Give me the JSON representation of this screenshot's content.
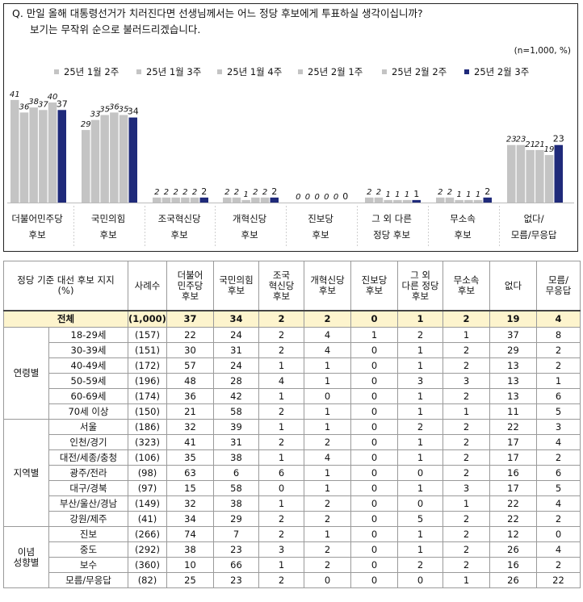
{
  "question": {
    "line1": "Q. 만일 올해 대통령선거가 치러진다면 선생님께서는 어느 정당 후보에게 투표하실 생각이십니까?",
    "line2": "보기는 무작위 순으로 불러드리겠습니다."
  },
  "note": "(n=1,000, %)",
  "colors": {
    "prior": "#c4c4c4",
    "latest": "#1f2a7a",
    "total_bg": "#fdf4cd"
  },
  "chart_data": {
    "type": "bar",
    "title": "",
    "legend_position": "top",
    "series": [
      {
        "name": "25년 1월 2주",
        "values": [
          41,
          29,
          2,
          2,
          0,
          2,
          2,
          23
        ]
      },
      {
        "name": "25년 1월 3주",
        "values": [
          36,
          33,
          2,
          2,
          0,
          2,
          2,
          23
        ]
      },
      {
        "name": "25년 1월 4주",
        "values": [
          38,
          35,
          2,
          1,
          0,
          1,
          1,
          21
        ]
      },
      {
        "name": "25년 2월 1주",
        "values": [
          37,
          36,
          2,
          2,
          0,
          1,
          1,
          21
        ]
      },
      {
        "name": "25년 2월 2주",
        "values": [
          40,
          35,
          2,
          2,
          0,
          1,
          1,
          19
        ]
      },
      {
        "name": "25년 2월 3주",
        "values": [
          37,
          34,
          2,
          2,
          0,
          1,
          2,
          23
        ]
      }
    ],
    "categories": [
      {
        "line1": "더불어민주당",
        "line2": "후보"
      },
      {
        "line1": "국민의힘",
        "line2": "후보"
      },
      {
        "line1": "조국혁신당",
        "line2": "후보"
      },
      {
        "line1": "개혁신당",
        "line2": "후보"
      },
      {
        "line1": "진보당",
        "line2": "후보"
      },
      {
        "line1": "그 외 다른",
        "line2": "정당 후보"
      },
      {
        "line1": "무소속",
        "line2": "후보"
      },
      {
        "line1": "없다/",
        "line2": "모름/무응답"
      }
    ],
    "ylim": [
      0,
      45
    ]
  },
  "table": {
    "headers": [
      [
        "정당 기준 대선 후보 지지",
        "(%)"
      ],
      [
        "사례수"
      ],
      [
        "더불어",
        "민주당",
        "후보"
      ],
      [
        "국민의힘",
        "후보"
      ],
      [
        "조국",
        "혁신당",
        "후보"
      ],
      [
        "개혁신당",
        "후보"
      ],
      [
        "진보당",
        "후보"
      ],
      [
        "그 외",
        "다른 정당",
        "후보"
      ],
      [
        "무소속",
        "후보"
      ],
      [
        "없다"
      ],
      [
        "모름/",
        "무응답"
      ]
    ],
    "total": {
      "label": "전체",
      "n": "(1,000)",
      "values": [
        "37",
        "34",
        "2",
        "2",
        "0",
        "1",
        "2",
        "19",
        "4"
      ]
    },
    "groups": [
      {
        "name": [
          "연령별"
        ],
        "rows": [
          {
            "label": "18-29세",
            "n": "(157)",
            "values": [
              "22",
              "24",
              "2",
              "4",
              "1",
              "2",
              "1",
              "37",
              "8"
            ]
          },
          {
            "label": "30-39세",
            "n": "(151)",
            "values": [
              "30",
              "31",
              "2",
              "4",
              "0",
              "1",
              "2",
              "29",
              "2"
            ]
          },
          {
            "label": "40-49세",
            "n": "(172)",
            "values": [
              "57",
              "24",
              "1",
              "1",
              "0",
              "1",
              "2",
              "13",
              "2"
            ]
          },
          {
            "label": "50-59세",
            "n": "(196)",
            "values": [
              "48",
              "28",
              "4",
              "1",
              "0",
              "3",
              "3",
              "13",
              "1"
            ]
          },
          {
            "label": "60-69세",
            "n": "(174)",
            "values": [
              "36",
              "42",
              "1",
              "0",
              "0",
              "1",
              "2",
              "13",
              "6"
            ]
          },
          {
            "label": "70세 이상",
            "n": "(150)",
            "values": [
              "21",
              "58",
              "2",
              "1",
              "0",
              "1",
              "1",
              "11",
              "5"
            ]
          }
        ]
      },
      {
        "name": [
          "지역별"
        ],
        "rows": [
          {
            "label": "서울",
            "n": "(186)",
            "values": [
              "32",
              "39",
              "1",
              "1",
              "0",
              "2",
              "2",
              "22",
              "3"
            ]
          },
          {
            "label": "인천/경기",
            "n": "(323)",
            "values": [
              "41",
              "31",
              "2",
              "2",
              "0",
              "1",
              "2",
              "17",
              "4"
            ]
          },
          {
            "label": "대전/세종/충청",
            "n": "(106)",
            "values": [
              "35",
              "38",
              "1",
              "4",
              "0",
              "1",
              "2",
              "17",
              "2"
            ]
          },
          {
            "label": "광주/전라",
            "n": "(98)",
            "values": [
              "63",
              "6",
              "6",
              "1",
              "0",
              "0",
              "2",
              "16",
              "6"
            ]
          },
          {
            "label": "대구/경북",
            "n": "(97)",
            "values": [
              "15",
              "58",
              "0",
              "1",
              "0",
              "1",
              "3",
              "17",
              "5"
            ]
          },
          {
            "label": "부산/울산/경남",
            "n": "(149)",
            "values": [
              "32",
              "38",
              "1",
              "2",
              "0",
              "0",
              "1",
              "22",
              "4"
            ]
          },
          {
            "label": "강원/제주",
            "n": "(41)",
            "values": [
              "34",
              "29",
              "2",
              "2",
              "0",
              "5",
              "2",
              "22",
              "2"
            ]
          }
        ]
      },
      {
        "name": [
          "이념",
          "성향별"
        ],
        "rows": [
          {
            "label": "진보",
            "n": "(266)",
            "values": [
              "74",
              "7",
              "2",
              "1",
              "0",
              "1",
              "2",
              "12",
              "0"
            ]
          },
          {
            "label": "중도",
            "n": "(292)",
            "values": [
              "38",
              "23",
              "3",
              "2",
              "0",
              "1",
              "2",
              "26",
              "4"
            ]
          },
          {
            "label": "보수",
            "n": "(360)",
            "values": [
              "10",
              "66",
              "1",
              "2",
              "0",
              "2",
              "2",
              "16",
              "2"
            ]
          },
          {
            "label": "모름/무응답",
            "n": "(82)",
            "values": [
              "25",
              "23",
              "2",
              "0",
              "0",
              "0",
              "1",
              "26",
              "22"
            ]
          }
        ]
      }
    ]
  }
}
